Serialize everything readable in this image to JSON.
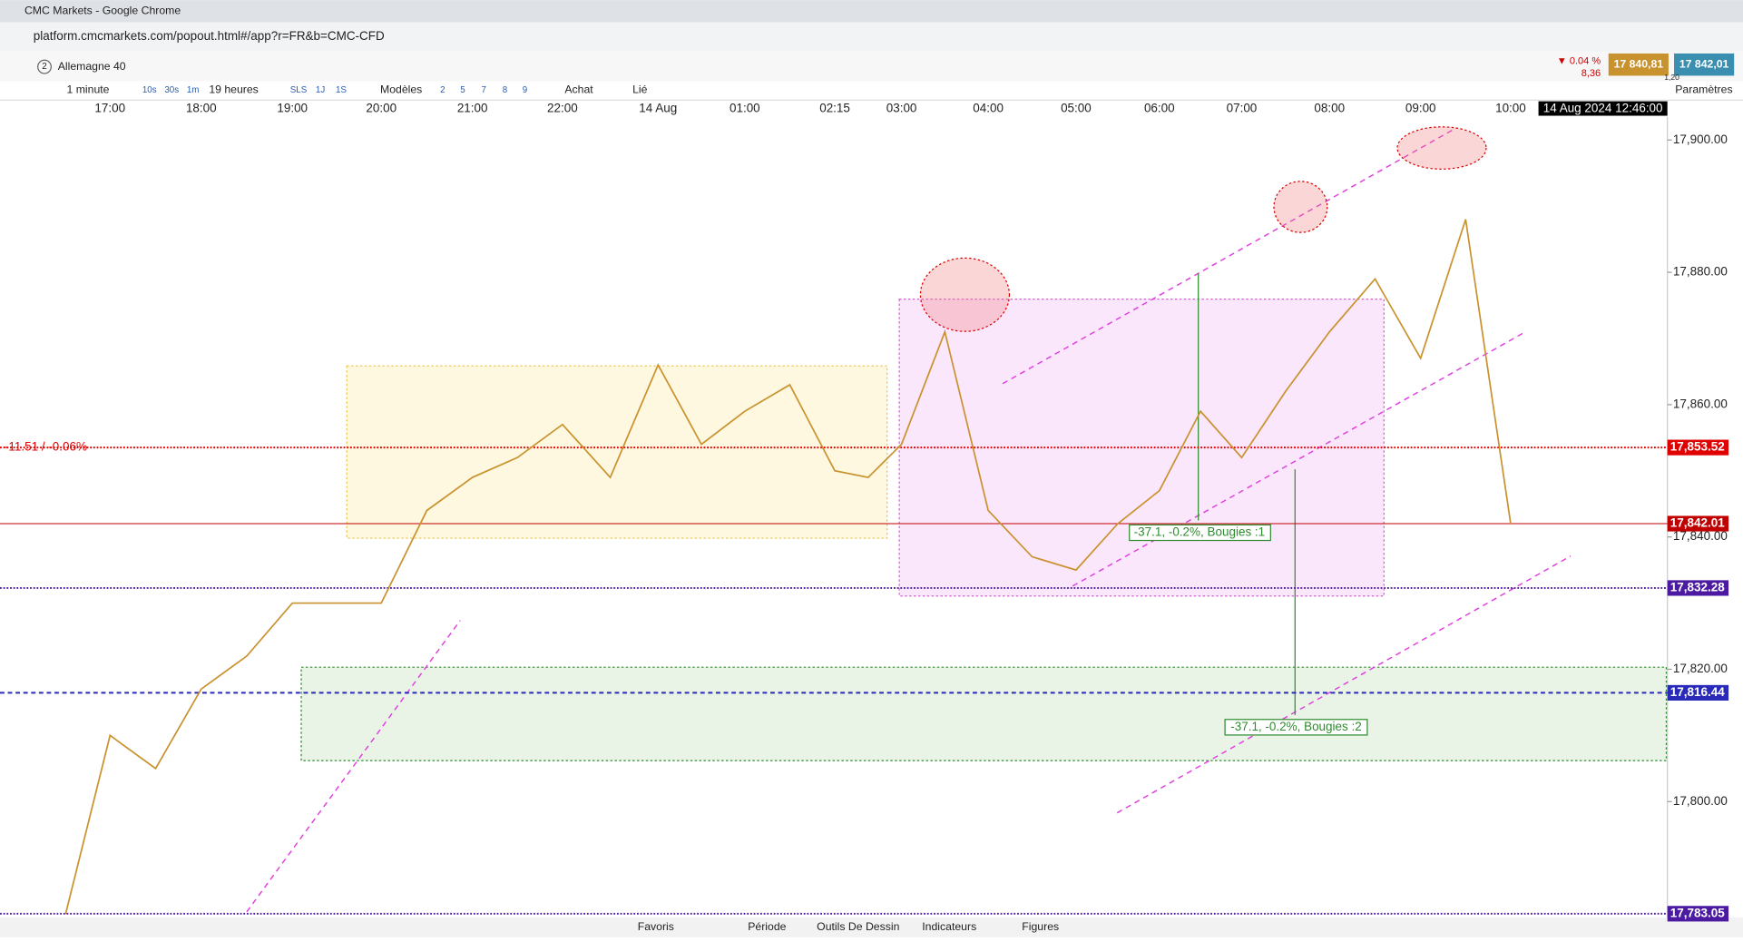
{
  "browser": {
    "title": "CMC Markets - Google Chrome",
    "url": "platform.cmcmarkets.com/popout.html#/app?r=FR&b=CMC-CFD"
  },
  "instrument": {
    "index": "2",
    "name": "Allemagne 40",
    "change_pct": "▼ 0.04 %",
    "change": "8,36",
    "bid": "17 840,81",
    "ask": "17 842,01",
    "spread": "1,20"
  },
  "toolbar": {
    "items": [
      "1 minute",
      "10s",
      "30s",
      "1m",
      "19 heures",
      "SLS",
      "1J",
      "1S",
      "Modèles",
      "2",
      "5",
      "7",
      "8",
      "9",
      "Achat",
      "Lié"
    ],
    "settings": "Paramètres"
  },
  "bottom_bar": {
    "tabs": [
      "Favoris",
      "Période",
      "Outils De Dessin",
      "Indicateurs",
      "Figures"
    ]
  },
  "cursor_time": "14 Aug 2024 12:46:00",
  "chart_data": {
    "type": "line",
    "categories": [
      null,
      "17:00",
      null,
      "18:00",
      null,
      "19:00",
      null,
      "20:00",
      null,
      "21:00",
      null,
      "22:00",
      null,
      "14 Aug",
      null,
      "01:00",
      null,
      "02:15",
      null,
      "03:00",
      null,
      "04:00",
      null,
      "05:00",
      null,
      "06:00",
      null,
      "07:00",
      null,
      "08:00",
      null,
      "09:00",
      null,
      "10:00"
    ],
    "series": [
      {
        "name": "Allemagne 40",
        "color": "#c9922e",
        "values": [
          17783,
          17810,
          17805,
          17817,
          17822,
          17830,
          17830,
          17830,
          17844,
          17849,
          17852,
          17857,
          17849,
          17866,
          17854,
          17859,
          17863,
          17850,
          17849,
          17854,
          17871,
          17844,
          17837,
          17835,
          17842,
          17847,
          17859,
          17852,
          17862,
          17871,
          17879,
          17867,
          17888,
          17842
        ]
      }
    ],
    "ylim": [
      17782.5,
      17903.5
    ],
    "yticks": [
      {
        "value": 17800,
        "label": "17,800.00"
      },
      {
        "value": 17820,
        "label": "17,820.00"
      },
      {
        "value": 17840,
        "label": "17,840.00"
      },
      {
        "value": 17860,
        "label": "17,860.00"
      },
      {
        "value": 17880,
        "label": "17,880.00"
      },
      {
        "value": 17900,
        "label": "17,900.00"
      }
    ],
    "levels": [
      {
        "value": 17853.52,
        "label": "17,853.52",
        "color": "#e00000",
        "style": "dotted"
      },
      {
        "value": 17842.01,
        "label": "17,842.01",
        "color": "#c00000",
        "style": "solid"
      },
      {
        "value": 17832.28,
        "label": "17,832.28",
        "color": "#4b1aa0",
        "style": "dotted"
      },
      {
        "value": 17816.44,
        "label": "17,816.44",
        "color": "#2a2ab8",
        "style": "dashed"
      },
      {
        "value": 17783.05,
        "label": "17,783.05",
        "color": "#4b1aa0",
        "style": "dotted"
      }
    ],
    "level_note": "-11.51 / -0.06%",
    "annotations": [
      "-37.1, -0.2%, Bougies :1",
      "-37.1, -0.2%, Bougies :2"
    ]
  }
}
